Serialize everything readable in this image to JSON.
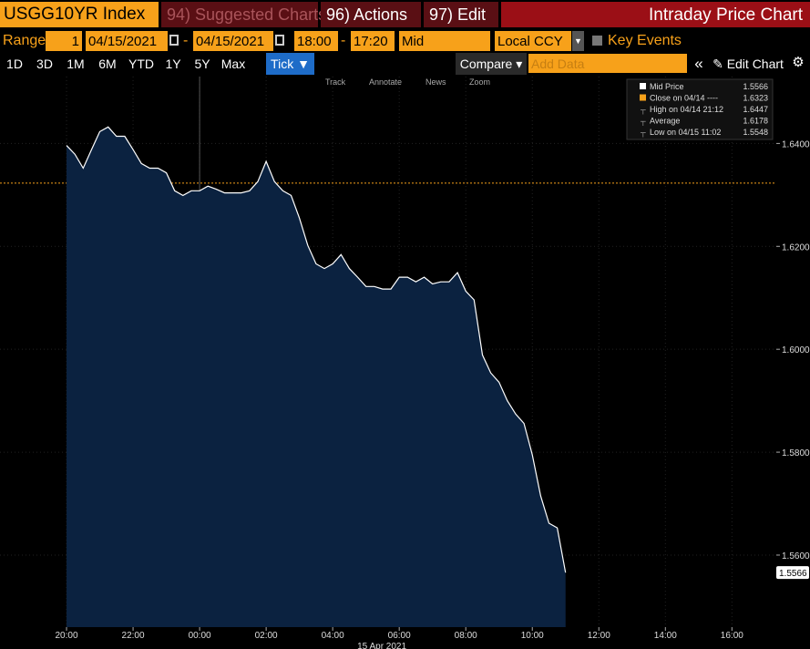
{
  "header": {
    "security": "USGG10YR Index",
    "buttons": [
      "94) Suggested Charts",
      "96) Actions",
      "97) Edit"
    ],
    "title": "Intraday Price Chart"
  },
  "range_bar": {
    "label": "Range",
    "period": "1",
    "start_date": "04/15/2021",
    "end_date": "04/15/2021",
    "price": "Mid",
    "currency": "Local CCY",
    "key_events": "Key Events"
  },
  "toolbar": {
    "periods": [
      "1D",
      "3D",
      "1M",
      "6M",
      "YTD",
      "1Y",
      "5Y",
      "Max"
    ],
    "active": "Tick",
    "compare": "Compare",
    "add_data": "Add Data",
    "edit_chart": "Edit Chart"
  },
  "chart_tools": [
    "Track",
    "Annotate",
    "News",
    "Zoom"
  ],
  "chart_data": {
    "type": "line",
    "x": [
      "20:00",
      "20:15",
      "20:30",
      "20:45",
      "21:00",
      "21:15",
      "21:30",
      "21:45",
      "22:00",
      "22:15",
      "22:30",
      "22:45",
      "23:00",
      "23:15",
      "23:30",
      "23:45",
      "00:00",
      "00:15",
      "00:30",
      "00:45",
      "01:00",
      "01:15",
      "01:30",
      "01:45",
      "02:00",
      "02:15",
      "02:30",
      "02:45",
      "03:00",
      "03:15",
      "03:30",
      "03:45",
      "04:00",
      "04:15",
      "04:30",
      "04:45",
      "05:00",
      "05:15",
      "05:30",
      "05:45",
      "06:00",
      "06:15",
      "06:30",
      "06:45",
      "07:00",
      "07:15",
      "07:30",
      "07:45",
      "08:00",
      "08:15",
      "08:30",
      "08:45",
      "09:00",
      "09:15",
      "09:30",
      "09:45",
      "10:00",
      "10:15",
      "10:30",
      "10:45",
      "11:00"
    ],
    "series": [
      {
        "name": "Mid Price",
        "color": "#ffffff",
        "values": [
          1.6396,
          1.6379,
          1.6352,
          1.6388,
          1.6423,
          1.6432,
          1.6414,
          1.6414,
          1.6388,
          1.6361,
          1.6352,
          1.6352,
          1.6343,
          1.6308,
          1.6299,
          1.6308,
          1.6308,
          1.6317,
          1.6311,
          1.6304,
          1.6304,
          1.6304,
          1.6308,
          1.6326,
          1.6365,
          1.6326,
          1.6308,
          1.6299,
          1.6255,
          1.6202,
          1.6166,
          1.6157,
          1.6166,
          1.6184,
          1.6157,
          1.614,
          1.6122,
          1.6122,
          1.6117,
          1.6117,
          1.614,
          1.614,
          1.6131,
          1.614,
          1.6127,
          1.6131,
          1.6131,
          1.6149,
          1.6113,
          1.6096,
          1.5989,
          1.5954,
          1.5936,
          1.59,
          1.5874,
          1.5856,
          1.5795,
          1.5715,
          1.5662,
          1.5653,
          1.5566
        ]
      }
    ],
    "legend": [
      {
        "label": "Mid Price",
        "value": 1.5566,
        "color": "#ffffff"
      },
      {
        "label": "Close on 04/14 ----",
        "value": 1.6323,
        "color": "#f7a11a"
      },
      {
        "label": "High on 04/14 21:12",
        "value": 1.6447
      },
      {
        "label": "Average",
        "value": 1.6178
      },
      {
        "label": "Low on 04/15 11:02",
        "value": 1.5548
      }
    ],
    "xlim": [
      "18:00",
      "17:20"
    ],
    "xticks": [
      "20:00",
      "22:00",
      "00:00",
      "02:00",
      "04:00",
      "06:00",
      "08:00",
      "10:00",
      "12:00",
      "14:00",
      "16:00"
    ],
    "x_date_label": "15 Apr 2021",
    "ylim": [
      1.546,
      1.653
    ],
    "yticks": [
      {
        "value": 1.56,
        "label": "1.5600"
      },
      {
        "value": 1.58,
        "label": "1.5800"
      },
      {
        "value": 1.6,
        "label": "1.6000"
      },
      {
        "value": 1.62,
        "label": "1.6200"
      },
      {
        "value": 1.64,
        "label": "1.6400"
      }
    ],
    "grid": true,
    "area_color": "#0b2240"
  }
}
